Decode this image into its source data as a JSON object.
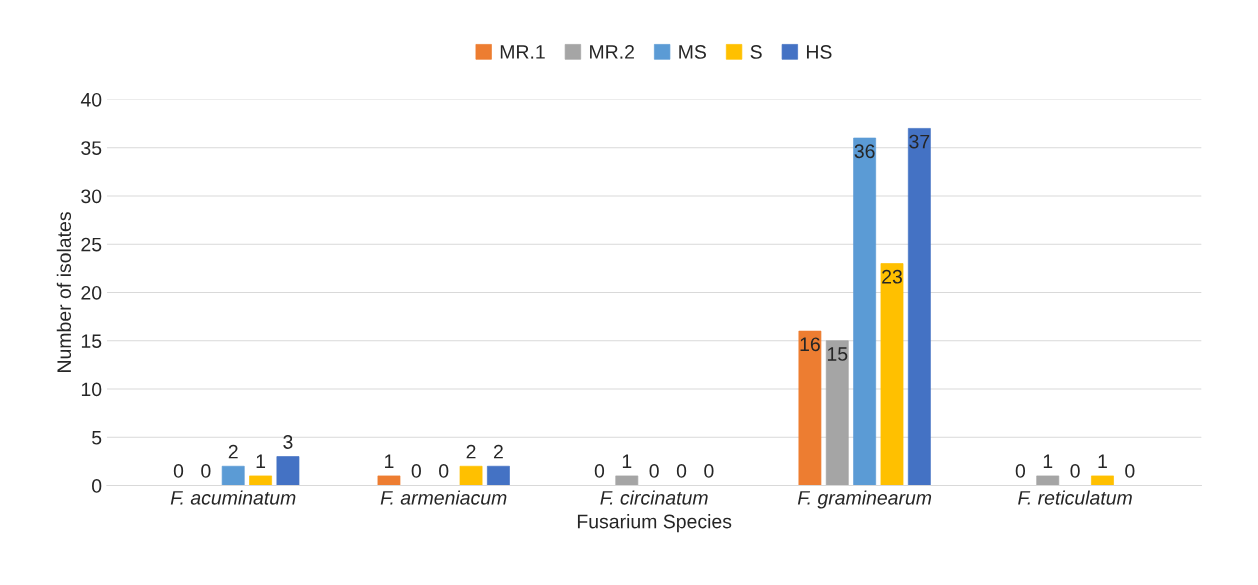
{
  "chart_data": {
    "type": "bar",
    "xlabel": "Fusarium Species",
    "ylabel": "Number of isolates",
    "categories": [
      "F. acuminatum",
      "F. armeniacum",
      "F. circinatum",
      "F. graminearum",
      "F. reticulatum"
    ],
    "series": [
      {
        "name": "MR.1",
        "color": "#ed7d31",
        "values": [
          0,
          1,
          0,
          16,
          0
        ]
      },
      {
        "name": "MR.2",
        "color": "#a5a5a5",
        "values": [
          0,
          0,
          1,
          15,
          1
        ]
      },
      {
        "name": "MS",
        "color": "#5b9bd5",
        "values": [
          2,
          0,
          0,
          36,
          0
        ]
      },
      {
        "name": "S",
        "color": "#ffc000",
        "values": [
          1,
          2,
          0,
          23,
          1
        ]
      },
      {
        "name": "HS",
        "color": "#4472c4",
        "values": [
          3,
          2,
          0,
          37,
          0
        ]
      }
    ],
    "ylim": [
      0,
      40
    ],
    "yticks": [
      0,
      5,
      10,
      15,
      20,
      25,
      30,
      35,
      40
    ],
    "grid": "y",
    "legend": "top",
    "data_labels": true
  }
}
